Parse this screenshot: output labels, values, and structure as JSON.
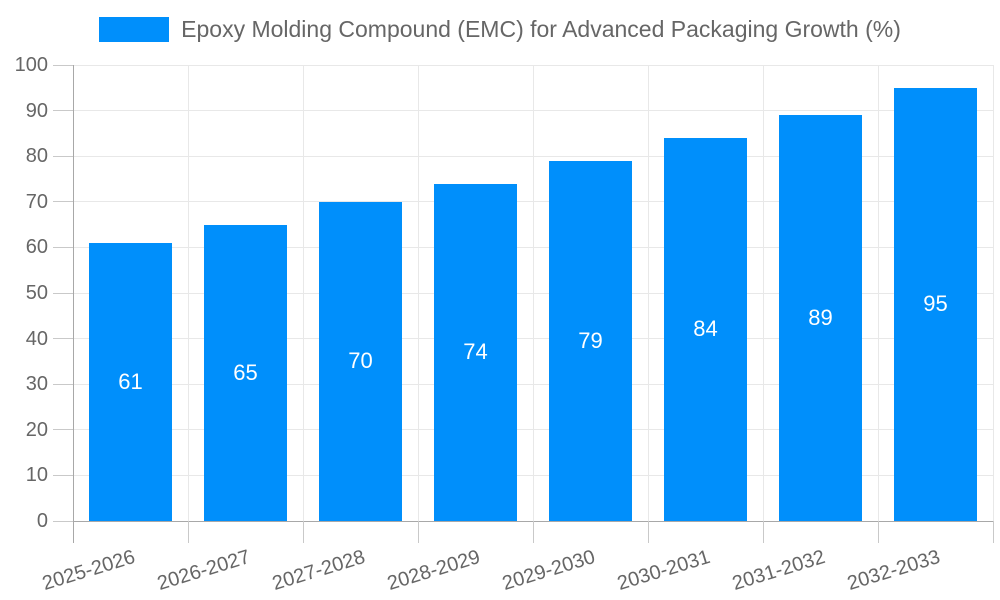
{
  "chart_data": {
    "type": "bar",
    "title": "Epoxy Molding Compound (EMC) for Advanced Packaging Growth (%)",
    "legend_label": "Epoxy Molding Compound (EMC) for Advanced Packaging Growth (%)",
    "categories": [
      "2025-2026",
      "2026-2027",
      "2027-2028",
      "2028-2029",
      "2029-2030",
      "2030-2031",
      "2031-2032",
      "2032-2033"
    ],
    "values": [
      61,
      65,
      70,
      74,
      79,
      84,
      89,
      95
    ],
    "xlabel": "",
    "ylabel": "",
    "ylim": [
      0,
      100
    ],
    "yticks": [
      0,
      10,
      20,
      30,
      40,
      50,
      60,
      70,
      80,
      90,
      100
    ],
    "grid": "both",
    "legend_position": "top",
    "data_labels_position": "inside-center",
    "x_tick_rotation_deg": -17
  },
  "colors": {
    "bar": "#008FFB",
    "grid": "#E8E8E8",
    "axis": "#A8A8A8",
    "tick": "#C9C9C9",
    "axis_text": "#666666",
    "legend_text": "#666666",
    "data_label_text": "#FFFFFF",
    "background": "#FFFFFF"
  }
}
